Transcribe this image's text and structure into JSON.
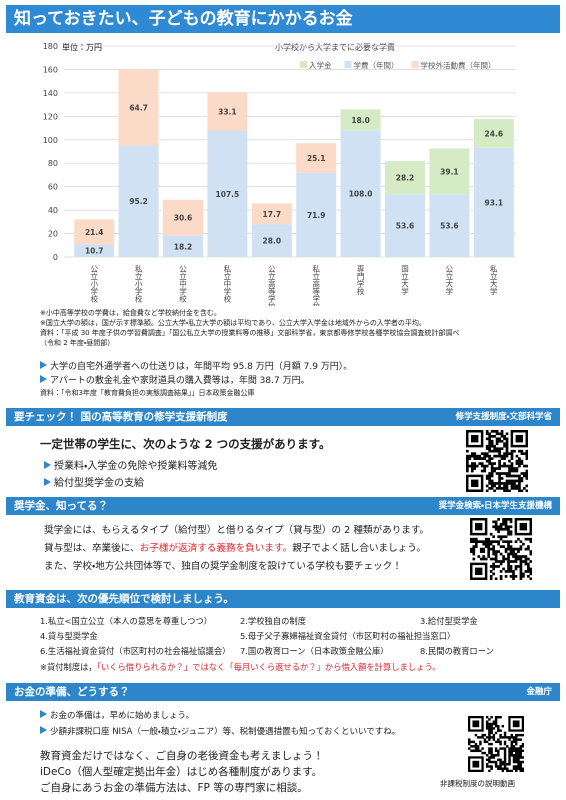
{
  "header": {
    "title": "知っておきたい、子どもの教育にかかるお金"
  },
  "chart_data": {
    "type": "bar",
    "stacked": true,
    "title": "小学校から大学までに必要な学費",
    "unit_label": "単位：万円",
    "categories": [
      "公立小学校",
      "私立小学校",
      "公立中学校",
      "私立中学校",
      "公立高等学校",
      "私立高等学校",
      "専門学校",
      "国立大学",
      "公立大学",
      "私立大学"
    ],
    "series": [
      {
        "name": "入学金",
        "color": "#d5ebc6",
        "values": [
          null,
          null,
          null,
          null,
          null,
          null,
          18.0,
          28.2,
          39.1,
          24.6
        ],
        "value_labels": [
          null,
          null,
          null,
          null,
          null,
          null,
          "18.0",
          "28.2",
          "39.1",
          "24.6"
        ]
      },
      {
        "name": "学費（年間）",
        "color": "#cfe1f3",
        "values": [
          10.7,
          95.2,
          18.2,
          107.5,
          28.0,
          71.9,
          108.0,
          53.6,
          53.6,
          93.1
        ],
        "value_labels": [
          "10.7",
          "95.2",
          "18.2",
          "107.5",
          "28.0",
          "71.9",
          "108.0",
          "53.6",
          "53.6",
          "93.1"
        ]
      },
      {
        "name": "学校外活動費（年間）",
        "color": "#fbdac8",
        "values": [
          21.4,
          64.7,
          30.6,
          33.1,
          17.7,
          25.1,
          null,
          null,
          null,
          null
        ],
        "value_labels": [
          "21.4",
          "64.7",
          "30.6",
          "33.1",
          "17.7",
          "25.1",
          null,
          null,
          null,
          null
        ]
      }
    ],
    "ylim": [
      0,
      180
    ],
    "yticks": [
      0,
      20,
      40,
      60,
      80,
      100,
      120,
      140,
      160,
      180
    ],
    "grid": true
  },
  "notes": [
    "※小中高等学校の学費は，給食費など学校納付金を含む。",
    "※国立大学の額は，国が示す標準額。公立大学・私立大学の額は平均であり、公立大学入学金は地域外からの入学者の平均。",
    "資料：「平成 30 年度子供の学習費調査」「国公私立大学の授業料等の推移」文部科学省，東京都専修学校各種学校協会調査統計部調べ",
    "（令和 2 年度・昼間部）"
  ],
  "facts": {
    "items": [
      "大学の自宅外通学者への仕送りは，年間平均 95.8 万円（月額 7.9 万円）。",
      "アパートの敷金礼金や家財道具の購入費等は，年間 38.7 万円。"
    ],
    "source": "資料：「令和3年度「教育費負担の実態調査結果」」日本政策金融公庫"
  },
  "support": {
    "title": "要チェック！ 国の高等教育の修学支援新制度",
    "tag": "修学支援制度・文部科学省",
    "lead": "一定世帯の学生に、次のような 2 つの支援があります。",
    "items": [
      "授業料・入学金の免除や授業料等減免",
      "給付型奨学金の支給"
    ]
  },
  "scholarship": {
    "title": "奨学金、知ってる？",
    "tag": "奨学金検索・日本学生支援機構",
    "line1": "奨学金には、もらえるタイプ（給付型）と借りるタイプ（貸与型）の 2 種類があります。",
    "line2": {
      "before": "貸与型は、卒業後に、",
      "emphasis": "お子様が返済する義務を負います。",
      "after": "親子でよく話し合いましょう。"
    },
    "line3": "また、学校・地方公共団体等で、独自の奨学金制度を設けている学校も要チェック！"
  },
  "priority": {
    "title": "教育資金は、次の優先順位で検討しましょう。",
    "items": [
      "1.私立<国立公立（本人の意思を尊重しつつ）",
      "2.学校独自の制度",
      "3.給付型奨学金",
      "4.貸与型奨学金",
      "5.母子父子寡婦福祉資金貸付（市区町村の福祉担当窓口）",
      "6.生活福祉資金貸付（市区町村の社会福祉協議会）",
      "7.国の教育ローン（日本政策金融公庫）",
      "8.民間の教育ローン"
    ],
    "note": {
      "before": "※貸付制度は，",
      "emphasis": "「いくら借りられるか？」ではなく「毎月いくら返せるか？」から借入額を計算しましょう。"
    }
  },
  "savings": {
    "title": "お金の準備、どうする？",
    "tag": "金融庁",
    "items": [
      "お金の準備は，早めに始めましょう。",
      "少額非課税口座 NISA（一般・積立・ジュニア）等、税制優遇措置も知っておくといいですね。"
    ],
    "lines": [
      "教育資金だけではなく、ご自身の老後資金も考えましょう！",
      "iDeCo（個人型確定拠出年金）はじめ各種制度があります。",
      "ご自身にあうお金の準備方法は、FP 等の専門家に相談。"
    ],
    "qr_caption": "非課税制度の説明動画"
  }
}
